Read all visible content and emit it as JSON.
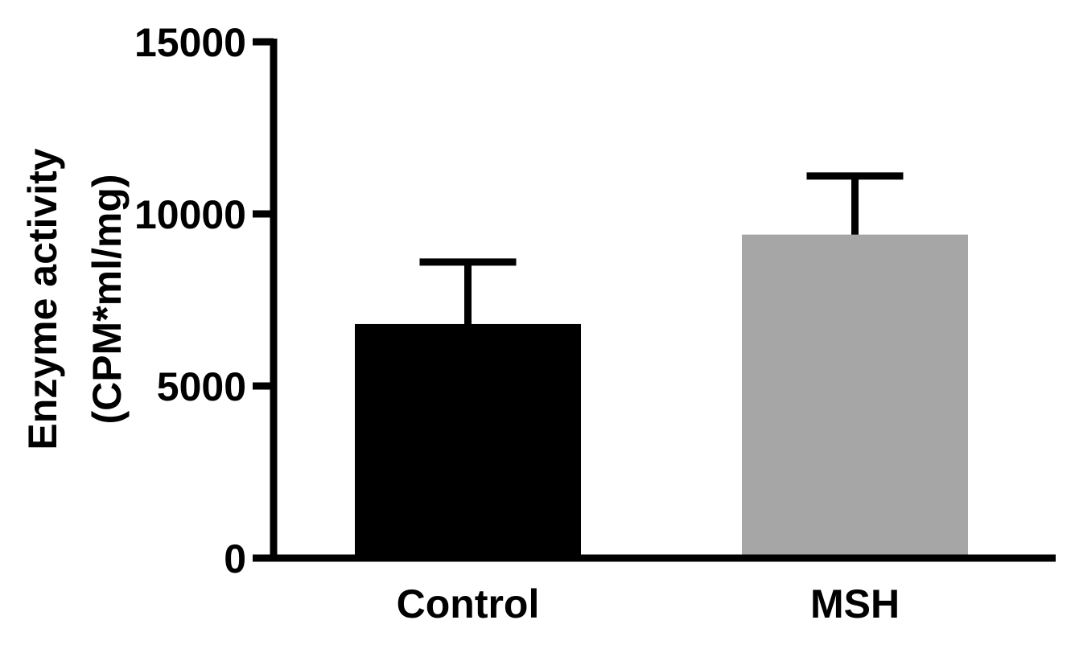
{
  "chart_data": {
    "type": "bar",
    "title": "",
    "xlabel": "",
    "ylabel_lines": [
      "Enzyme activity",
      "(CPM*ml/mg)"
    ],
    "categories": [
      "Control",
      "MSH"
    ],
    "values": [
      6800,
      9400
    ],
    "errors": [
      1800,
      1700
    ],
    "colors": [
      "#000000",
      "#a6a6a6"
    ],
    "ylim": [
      0,
      15000
    ],
    "yticks": [
      0,
      5000,
      10000,
      15000
    ],
    "ytick_labels": [
      "0",
      "5000",
      "10000",
      "15000"
    ],
    "grid": false,
    "legend": "none"
  }
}
